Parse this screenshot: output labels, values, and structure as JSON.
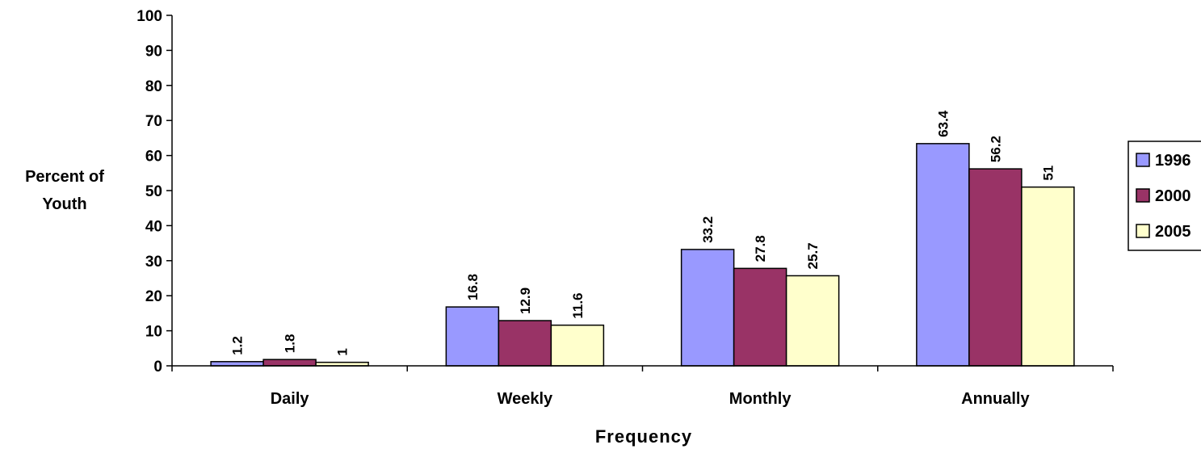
{
  "chart_data": {
    "type": "bar",
    "categories": [
      "Daily",
      "Weekly",
      "Monthly",
      "Annually"
    ],
    "series": [
      {
        "name": "1996",
        "values": [
          1.2,
          16.8,
          33.2,
          63.4
        ],
        "color": "#9999ff"
      },
      {
        "name": "2000",
        "values": [
          1.8,
          12.9,
          27.8,
          56.2
        ],
        "color": "#993366"
      },
      {
        "name": "2005",
        "values": [
          1,
          11.6,
          25.7,
          51
        ],
        "color": "#ffffcc"
      }
    ],
    "data_labels": [
      [
        "1.2",
        "16.8",
        "33.2",
        "63.4"
      ],
      [
        "1.8",
        "12.9",
        "27.8",
        "56.2"
      ],
      [
        "1",
        "11.6",
        "25.7",
        "51"
      ]
    ],
    "title": "",
    "xlabel": "Frequency",
    "ylabel": [
      "Percent of",
      "Youth"
    ],
    "ylim": [
      0,
      100
    ],
    "yticks": [
      "0",
      "10",
      "20",
      "30",
      "40",
      "50",
      "60",
      "70",
      "80",
      "90",
      "100"
    ],
    "grid": false,
    "legend_position": "right"
  }
}
